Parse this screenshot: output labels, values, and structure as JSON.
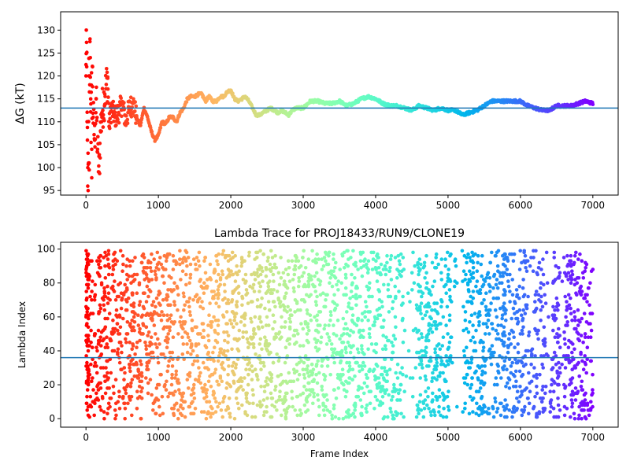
{
  "chart_data": [
    {
      "type": "scatter",
      "title": "",
      "xlabel": "",
      "ylabel": "ΔG (kT)",
      "xlim": [
        -350,
        7350
      ],
      "ylim": [
        94,
        134
      ],
      "xticks": [
        0,
        1000,
        2000,
        3000,
        4000,
        5000,
        6000,
        7000
      ],
      "yticks": [
        95,
        100,
        105,
        110,
        115,
        120,
        125,
        130
      ],
      "colormap": "rainbow",
      "color_direction": "red at frame 0 through orange, green, cyan, blue to violet at frame 7000",
      "hline": {
        "y": 113.0,
        "color": "#1f77b4"
      },
      "series": [
        {
          "values_by_frame": [
            [
              0,
              120
            ],
            [
              5,
              130
            ],
            [
              10,
              122
            ],
            [
              15,
              110
            ],
            [
              20,
              106
            ],
            [
              25,
              100
            ],
            [
              30,
              95
            ],
            [
              35,
              101
            ],
            [
              40,
              120
            ],
            [
              45,
              99.5
            ],
            [
              50,
              120
            ],
            [
              55,
              127.5
            ],
            [
              60,
              124
            ],
            [
              65,
              115
            ],
            [
              70,
              105.5
            ],
            [
              75,
              118
            ],
            [
              80,
              104
            ],
            [
              90,
              122
            ],
            [
              100,
              111
            ],
            [
              120,
              106
            ],
            [
              140,
              115
            ],
            [
              160,
              104
            ],
            [
              180,
              99
            ],
            [
              200,
              108
            ],
            [
              220,
              112
            ],
            [
              260,
              116
            ],
            [
              300,
              119.5
            ],
            [
              320,
              109
            ],
            [
              350,
              113
            ],
            [
              400,
              111
            ],
            [
              450,
              112
            ],
            [
              500,
              114
            ],
            [
              550,
              110
            ],
            [
              600,
              113
            ],
            [
              650,
              114
            ],
            [
              700,
              111
            ],
            [
              750,
              109
            ],
            [
              800,
              113
            ],
            [
              850,
              111
            ],
            [
              900,
              108
            ],
            [
              950,
              106
            ],
            [
              1000,
              107
            ],
            [
              1050,
              110
            ],
            [
              1100,
              109.5
            ],
            [
              1150,
              111
            ],
            [
              1200,
              111
            ],
            [
              1250,
              110
            ],
            [
              1300,
              112
            ],
            [
              1350,
              113
            ],
            [
              1400,
              115
            ],
            [
              1450,
              115.5
            ],
            [
              1500,
              115.5
            ],
            [
              1550,
              116
            ],
            [
              1600,
              116
            ],
            [
              1650,
              114.5
            ],
            [
              1700,
              115.5
            ],
            [
              1750,
              114.5
            ],
            [
              1800,
              114.5
            ],
            [
              1850,
              115.5
            ],
            [
              1900,
              115.5
            ],
            [
              1950,
              116.5
            ],
            [
              2000,
              117
            ],
            [
              2050,
              115
            ],
            [
              2100,
              114.5
            ],
            [
              2150,
              115
            ],
            [
              2200,
              115.5
            ],
            [
              2250,
              114.5
            ],
            [
              2300,
              113
            ],
            [
              2350,
              111.5
            ],
            [
              2400,
              111.5
            ],
            [
              2450,
              112
            ],
            [
              2500,
              112.5
            ],
            [
              2550,
              113
            ],
            [
              2600,
              112.5
            ],
            [
              2650,
              112
            ],
            [
              2700,
              112.5
            ],
            [
              2750,
              112
            ],
            [
              2800,
              111.5
            ],
            [
              2850,
              112.5
            ],
            [
              2900,
              113
            ],
            [
              2950,
              113
            ],
            [
              3000,
              113
            ],
            [
              3100,
              114.5
            ],
            [
              3200,
              114.5
            ],
            [
              3300,
              114
            ],
            [
              3400,
              114
            ],
            [
              3500,
              114.5
            ],
            [
              3600,
              113.5
            ],
            [
              3700,
              114
            ],
            [
              3800,
              115
            ],
            [
              3900,
              115.5
            ],
            [
              4000,
              115
            ],
            [
              4100,
              114
            ],
            [
              4200,
              113.5
            ],
            [
              4300,
              113.5
            ],
            [
              4400,
              113
            ],
            [
              4500,
              112.5
            ],
            [
              4600,
              113.5
            ],
            [
              4700,
              113
            ],
            [
              4800,
              112.5
            ],
            [
              4900,
              113
            ],
            [
              5000,
              112.5
            ],
            [
              5100,
              112.5
            ],
            [
              5200,
              111.5
            ],
            [
              5300,
              112
            ],
            [
              5400,
              112.5
            ],
            [
              5500,
              113.5
            ],
            [
              5600,
              114.5
            ],
            [
              5700,
              114.5
            ],
            [
              5800,
              114.5
            ],
            [
              5900,
              114.5
            ],
            [
              6000,
              114.5
            ],
            [
              6100,
              113.5
            ],
            [
              6200,
              113
            ],
            [
              6300,
              112.5
            ],
            [
              6400,
              112.5
            ],
            [
              6500,
              113.5
            ],
            [
              6600,
              113.5
            ],
            [
              6700,
              113.5
            ],
            [
              6800,
              114
            ],
            [
              6900,
              114.5
            ],
            [
              7000,
              114
            ]
          ]
        }
      ]
    },
    {
      "type": "scatter",
      "title": "Lambda Trace for PROJ18433/RUN9/CLONE19",
      "xlabel": "Frame Index",
      "ylabel": "Lambda Index",
      "xlim": [
        -350,
        7350
      ],
      "ylim": [
        -5,
        104
      ],
      "xticks": [
        0,
        1000,
        2000,
        3000,
        4000,
        5000,
        6000,
        7000
      ],
      "yticks": [
        0,
        20,
        40,
        60,
        80,
        100
      ],
      "colormap": "rainbow",
      "color_direction": "red at frame 0 through orange, green, cyan, blue to violet at frame 7000",
      "hline": {
        "y": 36,
        "color": "#1f77b4"
      },
      "point_count": 7000,
      "lambda_range": [
        0,
        99
      ],
      "sparse_frame_bands": [
        [
          4400,
          4550
        ],
        [
          5050,
          5200
        ],
        [
          6350,
          6400
        ],
        [
          6550,
          6600
        ]
      ]
    }
  ]
}
